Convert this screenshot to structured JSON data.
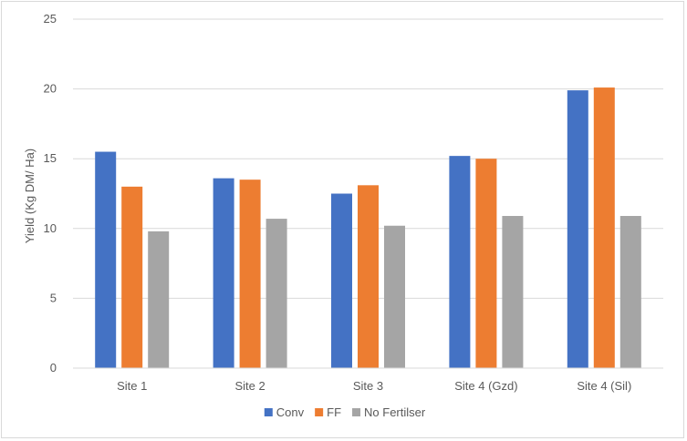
{
  "chart_data": {
    "type": "bar",
    "categories": [
      "Site 1",
      "Site 2",
      "Site 3",
      "Site 4 (Gzd)",
      "Site 4 (Sil)"
    ],
    "series": [
      {
        "name": "Conv",
        "color": "#4472c4",
        "values": [
          15.5,
          13.6,
          12.5,
          15.2,
          19.9
        ]
      },
      {
        "name": "FF",
        "color": "#ed7d31",
        "values": [
          13.0,
          13.5,
          13.1,
          15.0,
          20.1
        ]
      },
      {
        "name": "No Fertilser",
        "color": "#a5a5a5",
        "values": [
          9.8,
          10.7,
          10.2,
          10.9,
          10.9
        ]
      }
    ],
    "title": "",
    "xlabel": "",
    "ylabel": "Yield (Kg DM/ Ha)",
    "ylim": [
      0,
      25
    ],
    "yticks": [
      "0",
      "5",
      "10",
      "15",
      "20",
      "25"
    ],
    "grid": true,
    "legend_position": "bottom"
  }
}
